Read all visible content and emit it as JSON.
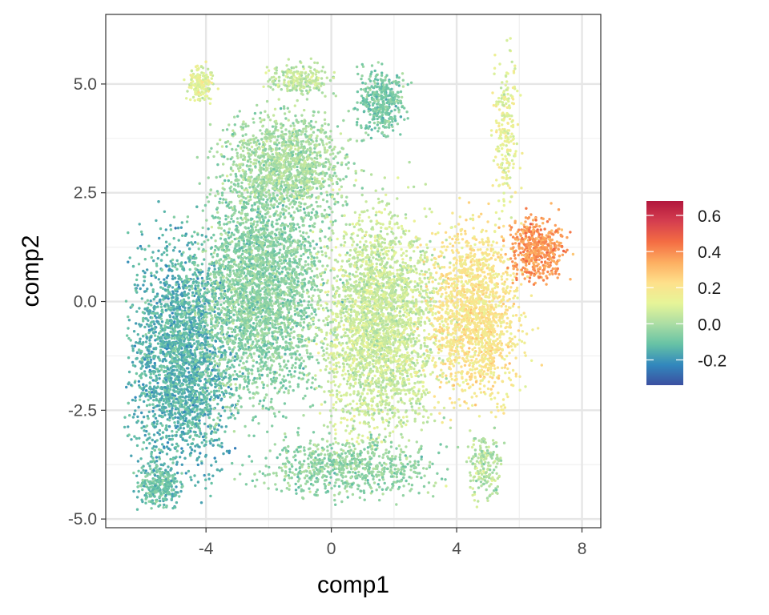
{
  "chart_data": {
    "type": "scatter",
    "title": "",
    "xlabel": "comp1",
    "ylabel": "comp2",
    "xlim": [
      -7.2,
      8.6
    ],
    "ylim": [
      -5.2,
      6.6
    ],
    "x_ticks": [
      {
        "value": -4,
        "label": "-4"
      },
      {
        "value": 0,
        "label": "0"
      },
      {
        "value": 4,
        "label": "4"
      },
      {
        "value": 8,
        "label": "8"
      }
    ],
    "y_ticks": [
      {
        "value": 5.0,
        "label": "5.0"
      },
      {
        "value": 2.5,
        "label": "2.5"
      },
      {
        "value": 0.0,
        "label": "0.0"
      },
      {
        "value": -2.5,
        "label": "-2.5"
      },
      {
        "value": -5.0,
        "label": "-5.0"
      }
    ],
    "grid": true,
    "color_scale": {
      "name": "",
      "palette": "Spectral (reversed)",
      "limits": [
        -0.34,
        0.68
      ],
      "colors": [
        "#3b4fa0",
        "#3288bd",
        "#66c2a5",
        "#abdda4",
        "#e6f598",
        "#fee08b",
        "#fdae61",
        "#f46d43",
        "#d53e4f",
        "#b2173d"
      ],
      "ticks": [
        {
          "value": 0.6,
          "label": "0.6"
        },
        {
          "value": 0.4,
          "label": "0.4"
        },
        {
          "value": 0.2,
          "label": "0.2"
        },
        {
          "value": 0.0,
          "label": "0.0"
        },
        {
          "value": -0.2,
          "label": "-0.2"
        }
      ],
      "position": "right"
    },
    "point_groups": [
      {
        "region": "left lobe",
        "x_center": -4.8,
        "y_center": -1.2,
        "x_spread": 1.3,
        "y_spread": 2.1,
        "n": 2600,
        "value_mean": -0.14
      },
      {
        "region": "lower-left corner",
        "x_center": -5.5,
        "y_center": -4.2,
        "x_spread": 0.6,
        "y_spread": 0.45,
        "n": 300,
        "value_mean": -0.1
      },
      {
        "region": "center-left",
        "x_center": -2.2,
        "y_center": 0.4,
        "x_spread": 1.6,
        "y_spread": 2.2,
        "n": 3000,
        "value_mean": -0.05
      },
      {
        "region": "upper-center",
        "x_center": -1.4,
        "y_center": 3.2,
        "x_spread": 1.6,
        "y_spread": 0.9,
        "n": 1200,
        "value_mean": 0.0
      },
      {
        "region": "center-right",
        "x_center": 1.6,
        "y_center": -0.5,
        "x_spread": 1.5,
        "y_spread": 2.1,
        "n": 2800,
        "value_mean": 0.06
      },
      {
        "region": "bottom-center",
        "x_center": 0.5,
        "y_center": -3.8,
        "x_spread": 2.2,
        "y_spread": 0.55,
        "n": 700,
        "value_mean": -0.04
      },
      {
        "region": "top-middle peak",
        "x_center": 1.6,
        "y_center": 4.6,
        "x_spread": 0.6,
        "y_spread": 0.6,
        "n": 400,
        "value_mean": -0.08
      },
      {
        "region": "top-left island",
        "x_center": -4.2,
        "y_center": 5.0,
        "x_spread": 0.35,
        "y_spread": 0.35,
        "n": 160,
        "value_mean": 0.12
      },
      {
        "region": "top ridge",
        "x_center": -1.0,
        "y_center": 5.1,
        "x_spread": 0.9,
        "y_spread": 0.3,
        "n": 220,
        "value_mean": 0.04
      },
      {
        "region": "right lobe",
        "x_center": 4.6,
        "y_center": -0.3,
        "x_spread": 1.2,
        "y_spread": 1.6,
        "n": 1600,
        "value_mean": 0.2
      },
      {
        "region": "far-right hotspot",
        "x_center": 6.6,
        "y_center": 1.2,
        "x_spread": 0.7,
        "y_spread": 0.6,
        "n": 500,
        "value_mean": 0.38
      },
      {
        "region": "right upper strand",
        "x_center": 5.6,
        "y_center": 4.0,
        "x_spread": 0.35,
        "y_spread": 1.5,
        "n": 220,
        "value_mean": 0.12
      },
      {
        "region": "bottom-right tail",
        "x_center": 4.9,
        "y_center": -3.8,
        "x_spread": 0.45,
        "y_spread": 0.6,
        "n": 180,
        "value_mean": 0.02
      }
    ]
  }
}
